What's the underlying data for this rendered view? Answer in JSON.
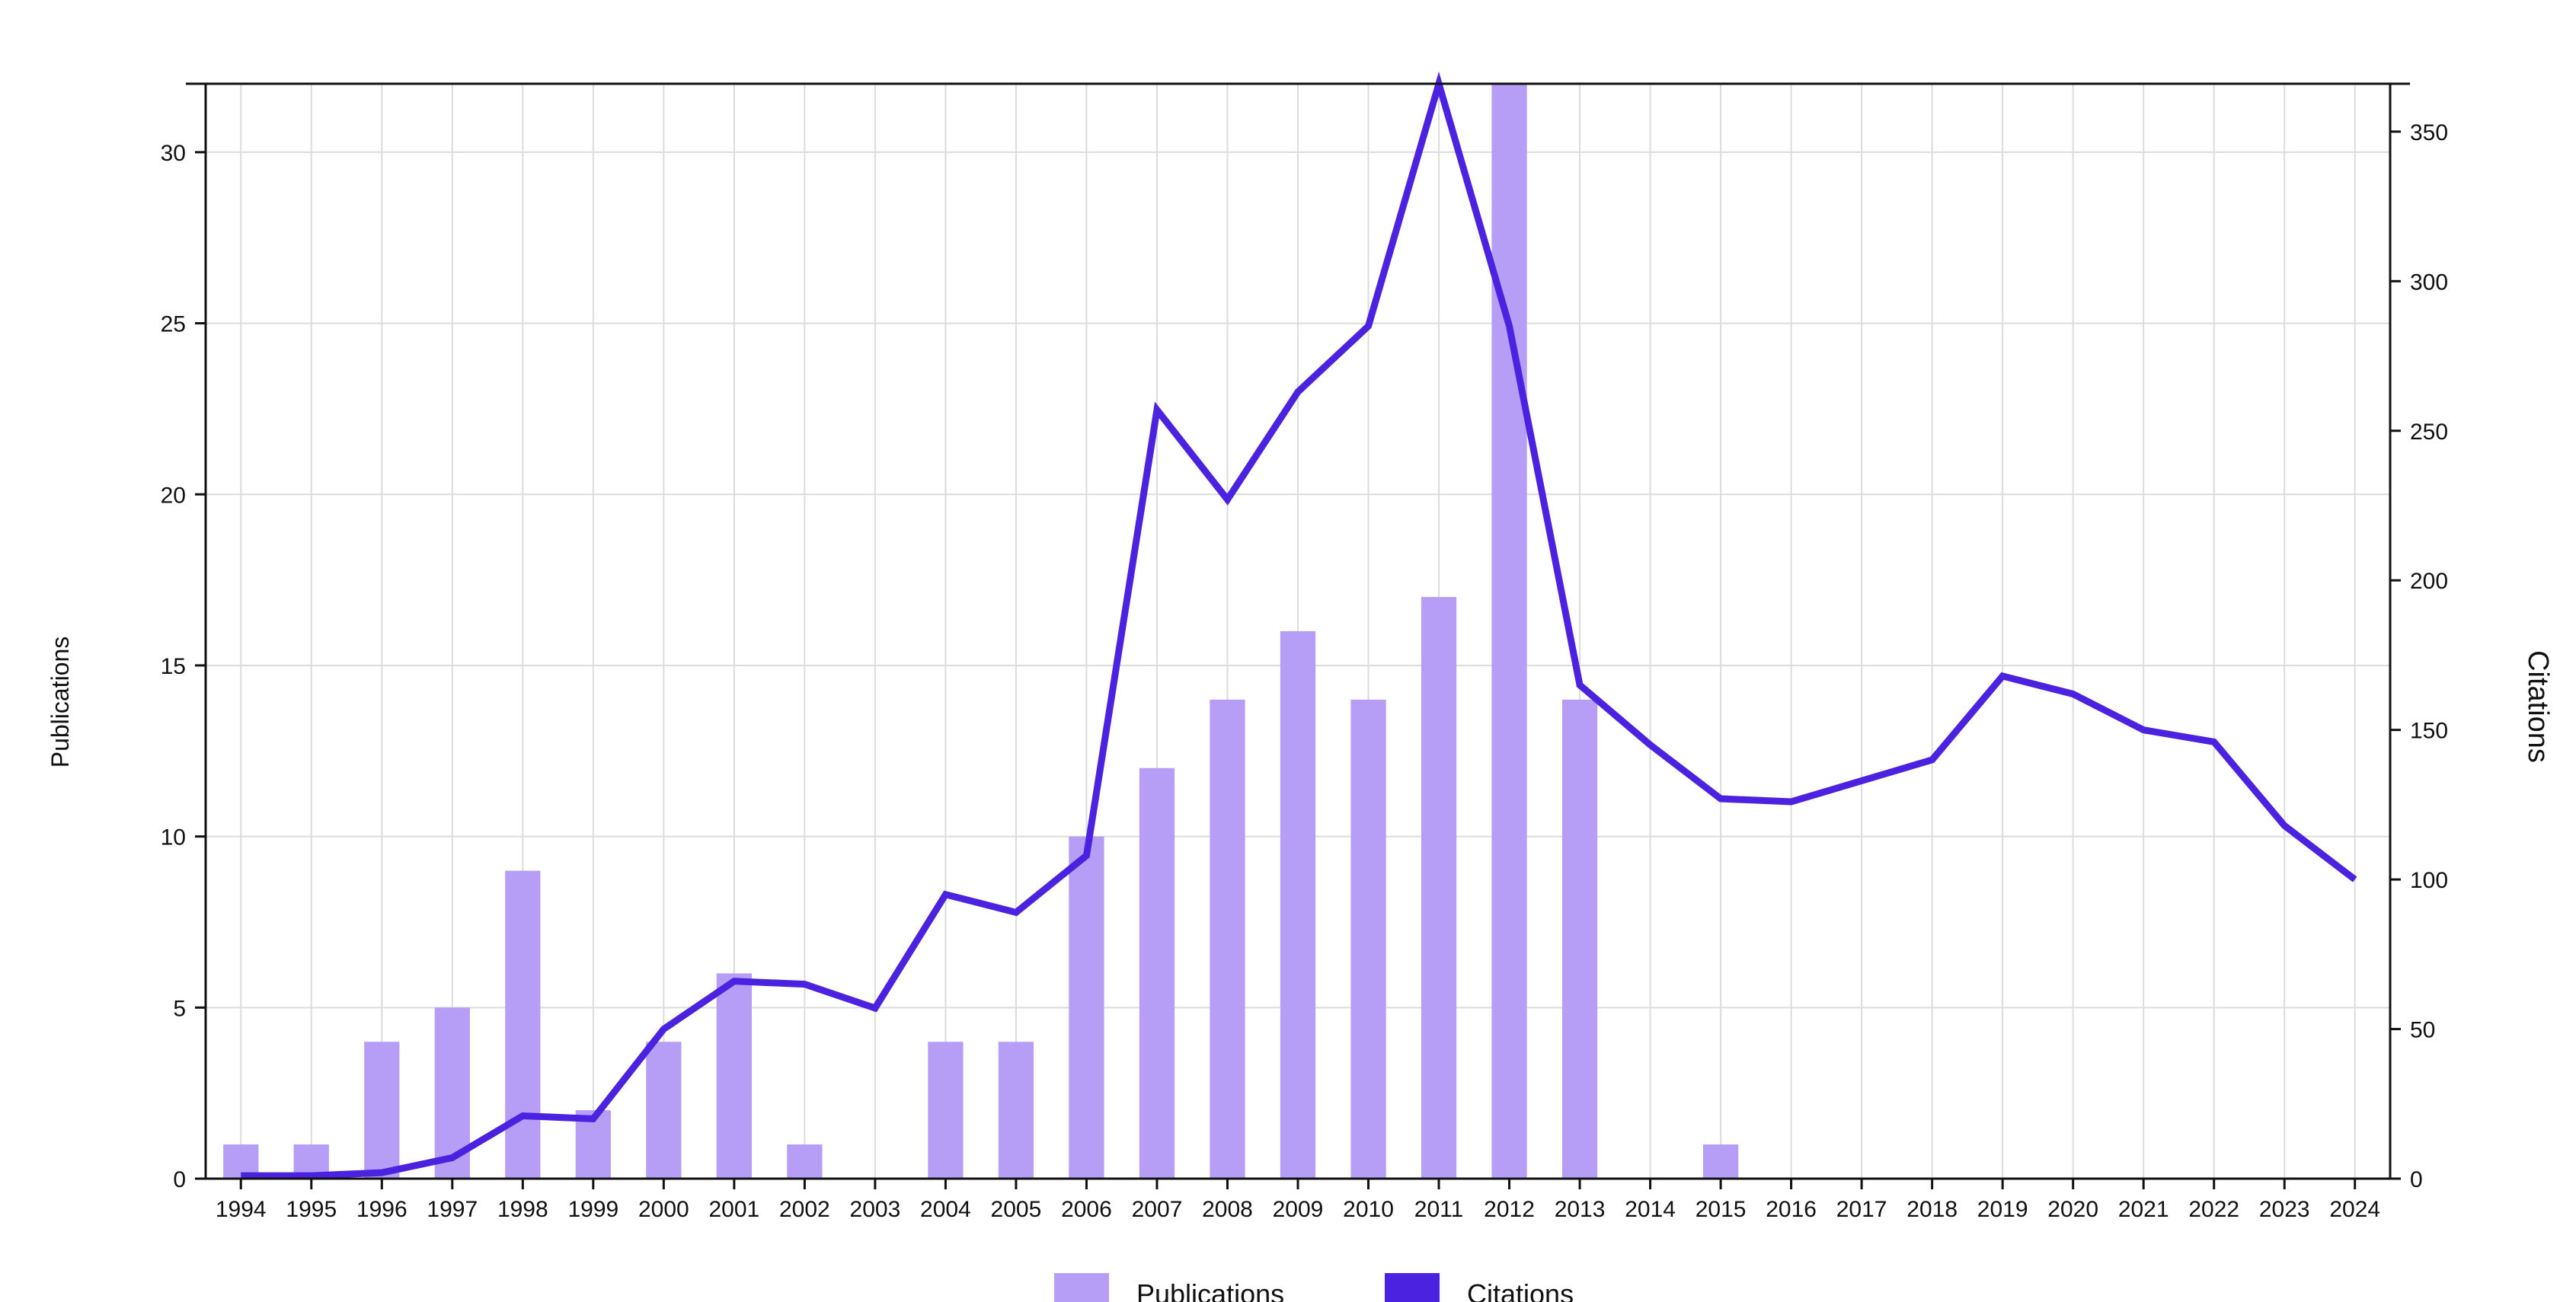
{
  "chart_data": {
    "type": "bar",
    "title": "",
    "categories": [
      "1994",
      "1995",
      "1996",
      "1997",
      "1998",
      "1999",
      "2000",
      "2001",
      "2002",
      "2003",
      "2004",
      "2005",
      "2006",
      "2007",
      "2008",
      "2009",
      "2010",
      "2011",
      "2012",
      "2013",
      "2014",
      "2015",
      "2016",
      "2017",
      "2018",
      "2019",
      "2020",
      "2021",
      "2022",
      "2023",
      "2024"
    ],
    "series": [
      {
        "name": "Publications",
        "type": "bar",
        "axis": "left",
        "color": "#b69ef7",
        "values": [
          1,
          1,
          4,
          5,
          9,
          2,
          4,
          6,
          1,
          0,
          4,
          4,
          10,
          12,
          14,
          16,
          14,
          17,
          32,
          14,
          0,
          1,
          0,
          0,
          0,
          0,
          0,
          0,
          0,
          0,
          0
        ]
      },
      {
        "name": "Citations",
        "type": "line",
        "axis": "right",
        "color": "#4a22e0",
        "values": [
          1,
          1,
          2,
          7,
          21,
          20,
          50,
          66,
          65,
          57,
          95,
          89,
          108,
          257,
          227,
          263,
          285,
          366,
          285,
          165,
          145,
          127,
          126,
          133,
          140,
          168,
          162,
          150,
          146,
          118,
          100
        ]
      }
    ],
    "ylabel_left": "Publications",
    "ylabel_right": "Citations",
    "ylim_left": [
      0,
      32
    ],
    "ylim_right": [
      0,
      366
    ],
    "yticks_left": [
      0,
      5,
      10,
      15,
      20,
      25,
      30
    ],
    "yticks_right": [
      0,
      50,
      100,
      150,
      200,
      250,
      300,
      350
    ],
    "grid": true,
    "legend_position": "bottom-center"
  }
}
